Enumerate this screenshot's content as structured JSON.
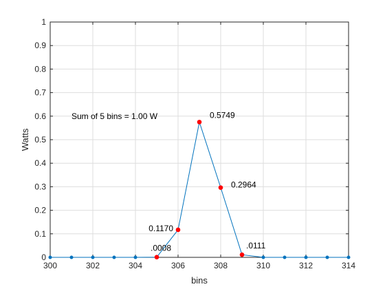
{
  "chart_data": {
    "type": "line",
    "title": "",
    "xlabel": "bins",
    "ylabel": "Watts",
    "xlim": [
      300,
      314
    ],
    "ylim": [
      0,
      1
    ],
    "x_ticks": [
      300,
      302,
      304,
      306,
      308,
      310,
      312,
      314
    ],
    "y_ticks": [
      0,
      0.1,
      0.2,
      0.3,
      0.4,
      0.5,
      0.6,
      0.7,
      0.8,
      0.9,
      1
    ],
    "grid": true,
    "x": [
      300,
      301,
      302,
      303,
      304,
      305,
      306,
      307,
      308,
      309,
      310,
      311,
      312,
      313,
      314
    ],
    "values": [
      0,
      0,
      0,
      0,
      0,
      0.0008,
      0.117,
      0.5749,
      0.2964,
      0.0111,
      0,
      0,
      0,
      0,
      0
    ],
    "highlighted_points": [
      {
        "x": 305,
        "y": 0.0008,
        "label": ".0008"
      },
      {
        "x": 306,
        "y": 0.117,
        "label": "0.1170"
      },
      {
        "x": 307,
        "y": 0.5749,
        "label": "0.5749"
      },
      {
        "x": 308,
        "y": 0.2964,
        "label": "0.2964"
      },
      {
        "x": 309,
        "y": 0.0111,
        "label": ".0111"
      }
    ],
    "annotation": {
      "text": "Sum of 5 bins = 1.00 W",
      "x": 301,
      "y": 0.6
    },
    "colors": {
      "line": "#0072BD",
      "highlight": "#ff0000",
      "grid": "#dedede",
      "axis": "#262626"
    }
  }
}
